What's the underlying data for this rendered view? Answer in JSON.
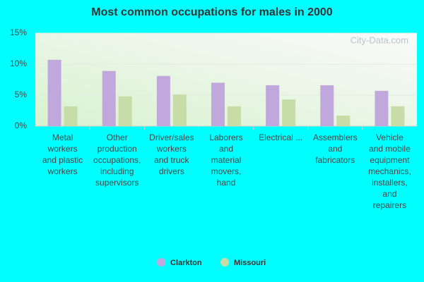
{
  "chart_data": {
    "type": "bar",
    "title": "Most common occupations for males in 2000",
    "watermark": "City-Data.com",
    "categories": [
      "Metal\nworkers\nand plastic\nworkers",
      "Other\nproduction\noccupations,\nincluding\nsupervisors",
      "Driver/sales\nworkers\nand truck\ndrivers",
      "Laborers\nand\nmaterial\nmovers,\nhand",
      "Electrical ...",
      "Assemblers\nand\nfabricators",
      "Vehicle\nand mobile\nequipment\nmechanics,\ninstallers,\nand\nrepairers"
    ],
    "series": [
      {
        "name": "Clarkton",
        "color": "#c0a8dc",
        "values": [
          10.7,
          8.9,
          8.1,
          7.0,
          6.6,
          6.6,
          5.7
        ]
      },
      {
        "name": "Missouri",
        "color": "#c8dca8",
        "values": [
          3.2,
          4.8,
          5.1,
          3.2,
          4.3,
          1.7,
          3.2
        ]
      }
    ],
    "ylim": [
      0,
      15
    ],
    "yticks": [
      {
        "value": 0,
        "label": "0%"
      },
      {
        "value": 5,
        "label": "5%"
      },
      {
        "value": 10,
        "label": "10%"
      },
      {
        "value": 15,
        "label": "15%"
      }
    ],
    "grid": true,
    "legend": "bottom"
  }
}
